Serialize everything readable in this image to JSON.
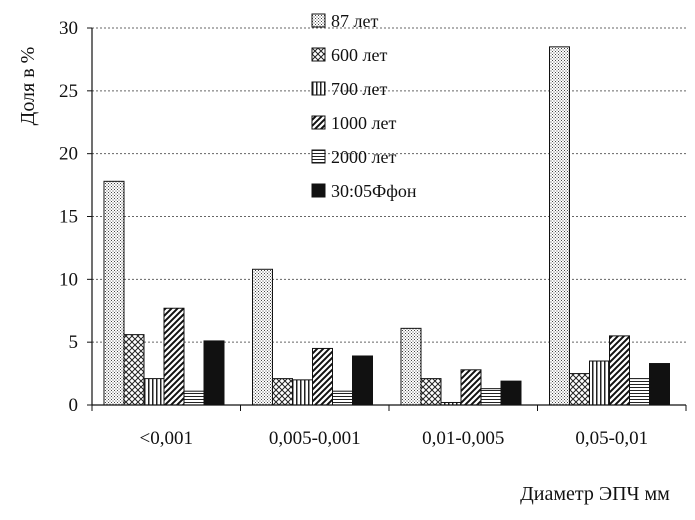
{
  "chart_data": {
    "type": "bar",
    "title": "",
    "xlabel": "Диаметр ЭПЧ мм",
    "ylabel": "Доля в %",
    "ylim": [
      0,
      30
    ],
    "yticks": [
      "0",
      "5",
      "10",
      "15",
      "20",
      "25",
      "30"
    ],
    "categories": [
      "<0,001",
      "0,005-0,001",
      "0,01-0,005",
      "0,05-0,01"
    ],
    "series": [
      {
        "name": "87 лет",
        "values": [
          17.8,
          10.8,
          6.1,
          28.5
        ],
        "pattern": "dots"
      },
      {
        "name": "600 лет",
        "values": [
          5.6,
          2.1,
          2.1,
          2.5
        ],
        "pattern": "crosshatch"
      },
      {
        "name": "700 лет",
        "values": [
          2.1,
          2.0,
          0.2,
          3.5
        ],
        "pattern": "vertical"
      },
      {
        "name": "1000 лет",
        "values": [
          7.7,
          4.5,
          2.8,
          5.5
        ],
        "pattern": "diagonal"
      },
      {
        "name": "2000 лет",
        "values": [
          1.1,
          1.1,
          1.3,
          2.1
        ],
        "pattern": "horizontal"
      },
      {
        "name": "30:05Ффон",
        "values": [
          5.1,
          3.9,
          1.9,
          3.3
        ],
        "pattern": "solid"
      }
    ],
    "grid": true,
    "legend_position": "top-center"
  }
}
